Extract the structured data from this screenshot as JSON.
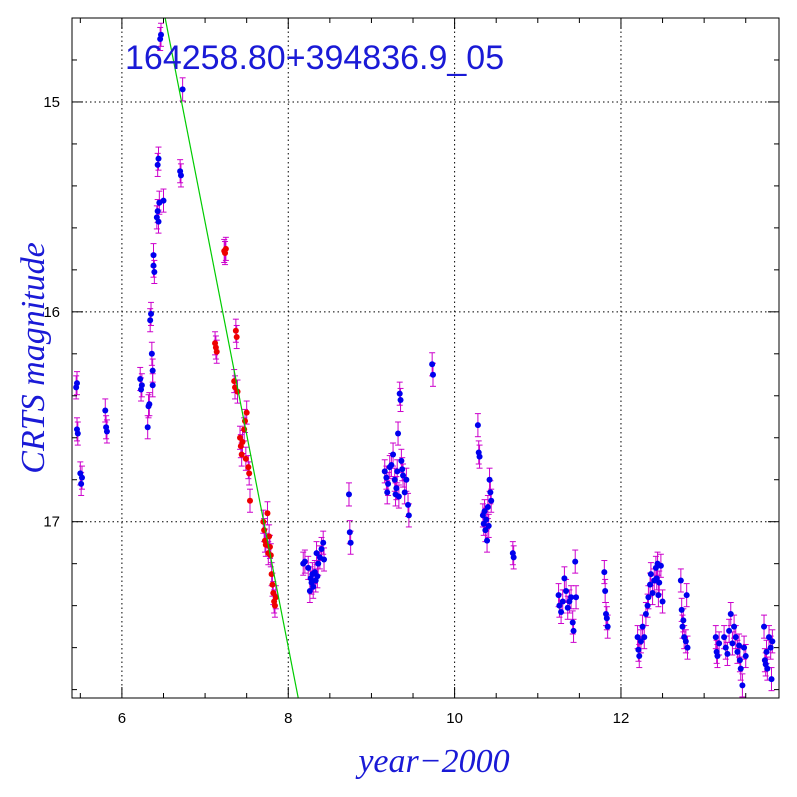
{
  "chart_data": {
    "type": "scatter",
    "title": "164258.80+394836.9_05",
    "xlabel": "year−2000",
    "ylabel": "CRTS magnitude",
    "xlim": [
      5.4,
      13.9
    ],
    "ylim": [
      17.84,
      14.6
    ],
    "y_inverted": true,
    "grid": true,
    "x_ticks": [
      6,
      8,
      10,
      12
    ],
    "x_tick_labels": [
      "6",
      "8",
      "10",
      "12"
    ],
    "y_ticks": [
      15,
      16,
      17
    ],
    "y_tick_labels": [
      "15",
      "16",
      "17"
    ],
    "colors": {
      "blue_points": "#0000ee",
      "red_points": "#ee0000",
      "error_bars": "#cc00cc",
      "fit_line": "#00cc00",
      "grid": "#000000",
      "labels": "#1a1ad6"
    },
    "error_bar_half_width": 0.055,
    "fit_line": {
      "x": [
        6.52,
        8.12
      ],
      "y": [
        14.6,
        17.84
      ]
    },
    "series": [
      {
        "color": "blue",
        "points": [
          [
            5.45,
            16.36
          ],
          [
            5.46,
            16.34
          ],
          [
            5.46,
            16.56
          ],
          [
            5.47,
            16.58
          ],
          [
            5.5,
            16.77
          ],
          [
            5.51,
            16.82
          ],
          [
            5.52,
            16.79
          ],
          [
            5.8,
            16.47
          ],
          [
            5.81,
            16.55
          ],
          [
            5.82,
            16.57
          ],
          [
            6.22,
            16.32
          ],
          [
            6.23,
            16.37
          ],
          [
            6.24,
            16.35
          ],
          [
            6.31,
            16.55
          ],
          [
            6.32,
            16.45
          ],
          [
            6.33,
            16.44
          ],
          [
            6.34,
            16.04
          ],
          [
            6.35,
            16.01
          ],
          [
            6.36,
            16.2
          ],
          [
            6.37,
            16.35
          ],
          [
            6.37,
            16.28
          ],
          [
            6.38,
            15.73
          ],
          [
            6.38,
            15.78
          ],
          [
            6.39,
            15.81
          ],
          [
            6.42,
            15.55
          ],
          [
            6.43,
            15.52
          ],
          [
            6.44,
            15.57
          ],
          [
            6.43,
            15.3
          ],
          [
            6.44,
            15.27
          ],
          [
            6.45,
            15.48
          ],
          [
            6.46,
            14.7
          ],
          [
            6.47,
            14.68
          ],
          [
            6.5,
            15.47
          ],
          [
            6.7,
            15.33
          ],
          [
            6.71,
            15.35
          ],
          [
            6.73,
            14.94
          ],
          [
            8.18,
            17.2
          ],
          [
            8.2,
            17.19
          ],
          [
            8.24,
            17.22
          ],
          [
            8.26,
            17.33
          ],
          [
            8.27,
            17.27
          ],
          [
            8.28,
            17.29
          ],
          [
            8.29,
            17.25
          ],
          [
            8.3,
            17.31
          ],
          [
            8.32,
            17.24
          ],
          [
            8.33,
            17.28
          ],
          [
            8.34,
            17.15
          ],
          [
            8.35,
            17.26
          ],
          [
            8.36,
            17.2
          ],
          [
            8.38,
            17.17
          ],
          [
            8.4,
            17.13
          ],
          [
            8.42,
            17.1
          ],
          [
            8.43,
            17.18
          ],
          [
            8.73,
            16.87
          ],
          [
            8.74,
            17.05
          ],
          [
            8.75,
            17.1
          ],
          [
            9.16,
            16.76
          ],
          [
            9.18,
            16.79
          ],
          [
            9.19,
            16.86
          ],
          [
            9.2,
            16.82
          ],
          [
            9.22,
            16.74
          ],
          [
            9.24,
            16.73
          ],
          [
            9.26,
            16.68
          ],
          [
            9.28,
            16.8
          ],
          [
            9.29,
            16.87
          ],
          [
            9.3,
            16.84
          ],
          [
            9.31,
            16.76
          ],
          [
            9.32,
            16.58
          ],
          [
            9.33,
            16.88
          ],
          [
            9.34,
            16.39
          ],
          [
            9.35,
            16.42
          ],
          [
            9.36,
            16.71
          ],
          [
            9.37,
            16.75
          ],
          [
            9.38,
            16.78
          ],
          [
            9.4,
            16.86
          ],
          [
            9.42,
            16.8
          ],
          [
            9.44,
            16.92
          ],
          [
            9.45,
            16.97
          ],
          [
            9.73,
            16.25
          ],
          [
            9.74,
            16.3
          ],
          [
            10.28,
            16.54
          ],
          [
            10.29,
            16.67
          ],
          [
            10.3,
            16.69
          ],
          [
            10.34,
            16.97
          ],
          [
            10.35,
            17.01
          ],
          [
            10.36,
            16.95
          ],
          [
            10.37,
            17.04
          ],
          [
            10.38,
            16.99
          ],
          [
            10.39,
            17.09
          ],
          [
            10.4,
            16.93
          ],
          [
            10.41,
            17.02
          ],
          [
            10.42,
            16.8
          ],
          [
            10.43,
            16.86
          ],
          [
            10.44,
            16.9
          ],
          [
            10.7,
            17.15
          ],
          [
            10.71,
            17.17
          ],
          [
            11.25,
            17.35
          ],
          [
            11.26,
            17.4
          ],
          [
            11.28,
            17.43
          ],
          [
            11.3,
            17.38
          ],
          [
            11.32,
            17.27
          ],
          [
            11.34,
            17.33
          ],
          [
            11.36,
            17.41
          ],
          [
            11.38,
            17.38
          ],
          [
            11.4,
            17.36
          ],
          [
            11.42,
            17.48
          ],
          [
            11.43,
            17.52
          ],
          [
            11.45,
            17.19
          ],
          [
            11.46,
            17.36
          ],
          [
            11.8,
            17.24
          ],
          [
            11.81,
            17.33
          ],
          [
            11.82,
            17.44
          ],
          [
            11.83,
            17.46
          ],
          [
            11.84,
            17.5
          ],
          [
            12.2,
            17.55
          ],
          [
            12.21,
            17.61
          ],
          [
            12.22,
            17.64
          ],
          [
            12.24,
            17.57
          ],
          [
            12.26,
            17.5
          ],
          [
            12.28,
            17.55
          ],
          [
            12.3,
            17.44
          ],
          [
            12.32,
            17.4
          ],
          [
            12.33,
            17.36
          ],
          [
            12.35,
            17.3
          ],
          [
            12.36,
            17.25
          ],
          [
            12.38,
            17.34
          ],
          [
            12.4,
            17.28
          ],
          [
            12.42,
            17.22
          ],
          [
            12.43,
            17.27
          ],
          [
            12.44,
            17.2
          ],
          [
            12.45,
            17.35
          ],
          [
            12.46,
            17.29
          ],
          [
            12.48,
            17.21
          ],
          [
            12.5,
            17.38
          ],
          [
            12.72,
            17.28
          ],
          [
            12.73,
            17.42
          ],
          [
            12.74,
            17.5
          ],
          [
            12.75,
            17.47
          ],
          [
            12.76,
            17.55
          ],
          [
            12.78,
            17.57
          ],
          [
            12.79,
            17.35
          ],
          [
            12.8,
            17.6
          ],
          [
            13.14,
            17.55
          ],
          [
            13.15,
            17.62
          ],
          [
            13.16,
            17.64
          ],
          [
            13.18,
            17.58
          ],
          [
            13.24,
            17.55
          ],
          [
            13.26,
            17.6
          ],
          [
            13.28,
            17.63
          ],
          [
            13.3,
            17.52
          ],
          [
            13.32,
            17.44
          ],
          [
            13.34,
            17.58
          ],
          [
            13.36,
            17.5
          ],
          [
            13.38,
            17.55
          ],
          [
            13.4,
            17.62
          ],
          [
            13.42,
            17.59
          ],
          [
            13.43,
            17.66
          ],
          [
            13.44,
            17.7
          ],
          [
            13.46,
            17.78
          ],
          [
            13.48,
            17.6
          ],
          [
            13.5,
            17.64
          ],
          [
            13.72,
            17.5
          ],
          [
            13.73,
            17.66
          ],
          [
            13.74,
            17.68
          ],
          [
            13.75,
            17.62
          ],
          [
            13.76,
            17.7
          ],
          [
            13.78,
            17.55
          ],
          [
            13.8,
            17.6
          ],
          [
            13.81,
            17.75
          ],
          [
            13.82,
            17.57
          ]
        ]
      },
      {
        "color": "red",
        "points": [
          [
            7.12,
            16.15
          ],
          [
            7.13,
            16.17
          ],
          [
            7.14,
            16.19
          ],
          [
            7.23,
            15.71
          ],
          [
            7.24,
            15.72
          ],
          [
            7.25,
            15.7
          ],
          [
            7.35,
            16.33
          ],
          [
            7.36,
            16.36
          ],
          [
            7.37,
            16.09
          ],
          [
            7.38,
            16.12
          ],
          [
            7.39,
            16.38
          ],
          [
            7.42,
            16.6
          ],
          [
            7.43,
            16.64
          ],
          [
            7.44,
            16.68
          ],
          [
            7.45,
            16.62
          ],
          [
            7.47,
            16.56
          ],
          [
            7.48,
            16.52
          ],
          [
            7.49,
            16.7
          ],
          [
            7.5,
            16.48
          ],
          [
            7.52,
            16.74
          ],
          [
            7.53,
            16.77
          ],
          [
            7.54,
            16.9
          ],
          [
            7.7,
            17.0
          ],
          [
            7.71,
            17.04
          ],
          [
            7.72,
            17.09
          ],
          [
            7.73,
            17.11
          ],
          [
            7.75,
            16.96
          ],
          [
            7.76,
            17.15
          ],
          [
            7.77,
            17.07
          ],
          [
            7.78,
            17.12
          ],
          [
            7.79,
            17.16
          ],
          [
            7.8,
            17.25
          ],
          [
            7.81,
            17.3
          ],
          [
            7.82,
            17.34
          ],
          [
            7.83,
            17.38
          ],
          [
            7.84,
            17.4
          ],
          [
            7.85,
            17.36
          ]
        ]
      }
    ]
  }
}
